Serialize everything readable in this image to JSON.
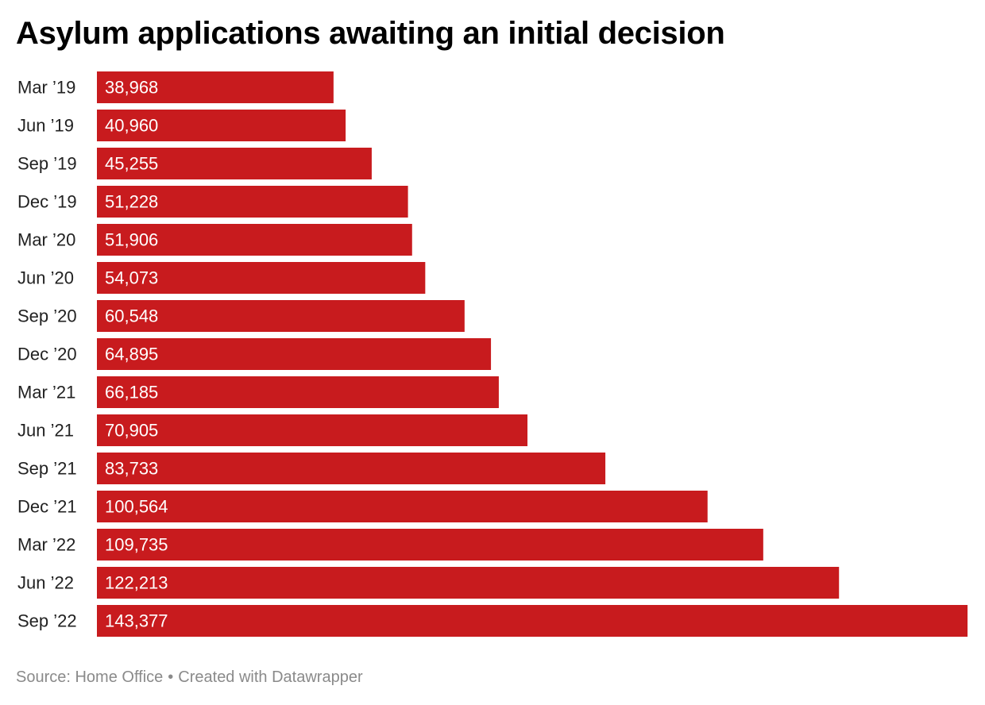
{
  "title": "Asylum applications awaiting an initial decision",
  "footer": {
    "source": "Source: Home Office",
    "separator": "•",
    "credit": "Created with Datawrapper"
  },
  "colors": {
    "bar": "#c81b1e",
    "value_label": "#ffffff",
    "category_label": "#222222",
    "footer": "#8a8a8a"
  },
  "chart_data": {
    "type": "bar",
    "orientation": "horizontal",
    "title": "Asylum applications awaiting an initial decision",
    "categories": [
      "Mar ’19",
      "Jun ’19",
      "Sep ’19",
      "Dec ’19",
      "Mar ’20",
      "Jun ’20",
      "Sep ’20",
      "Dec ’20",
      "Mar ’21",
      "Jun ’21",
      "Sep ’21",
      "Dec ’21",
      "Mar ’22",
      "Jun ’22",
      "Sep ’22"
    ],
    "values": [
      38968,
      40960,
      45255,
      51228,
      51906,
      54073,
      60548,
      64895,
      66185,
      70905,
      83733,
      100564,
      109735,
      122213,
      143377
    ],
    "value_labels": [
      "38,968",
      "40,960",
      "45,255",
      "51,228",
      "51,906",
      "54,073",
      "60,548",
      "64,895",
      "66,185",
      "70,905",
      "83,733",
      "100,564",
      "109,735",
      "122,213",
      "143,377"
    ],
    "xlim": [
      0,
      143377
    ],
    "grid": false,
    "legend": "none"
  }
}
